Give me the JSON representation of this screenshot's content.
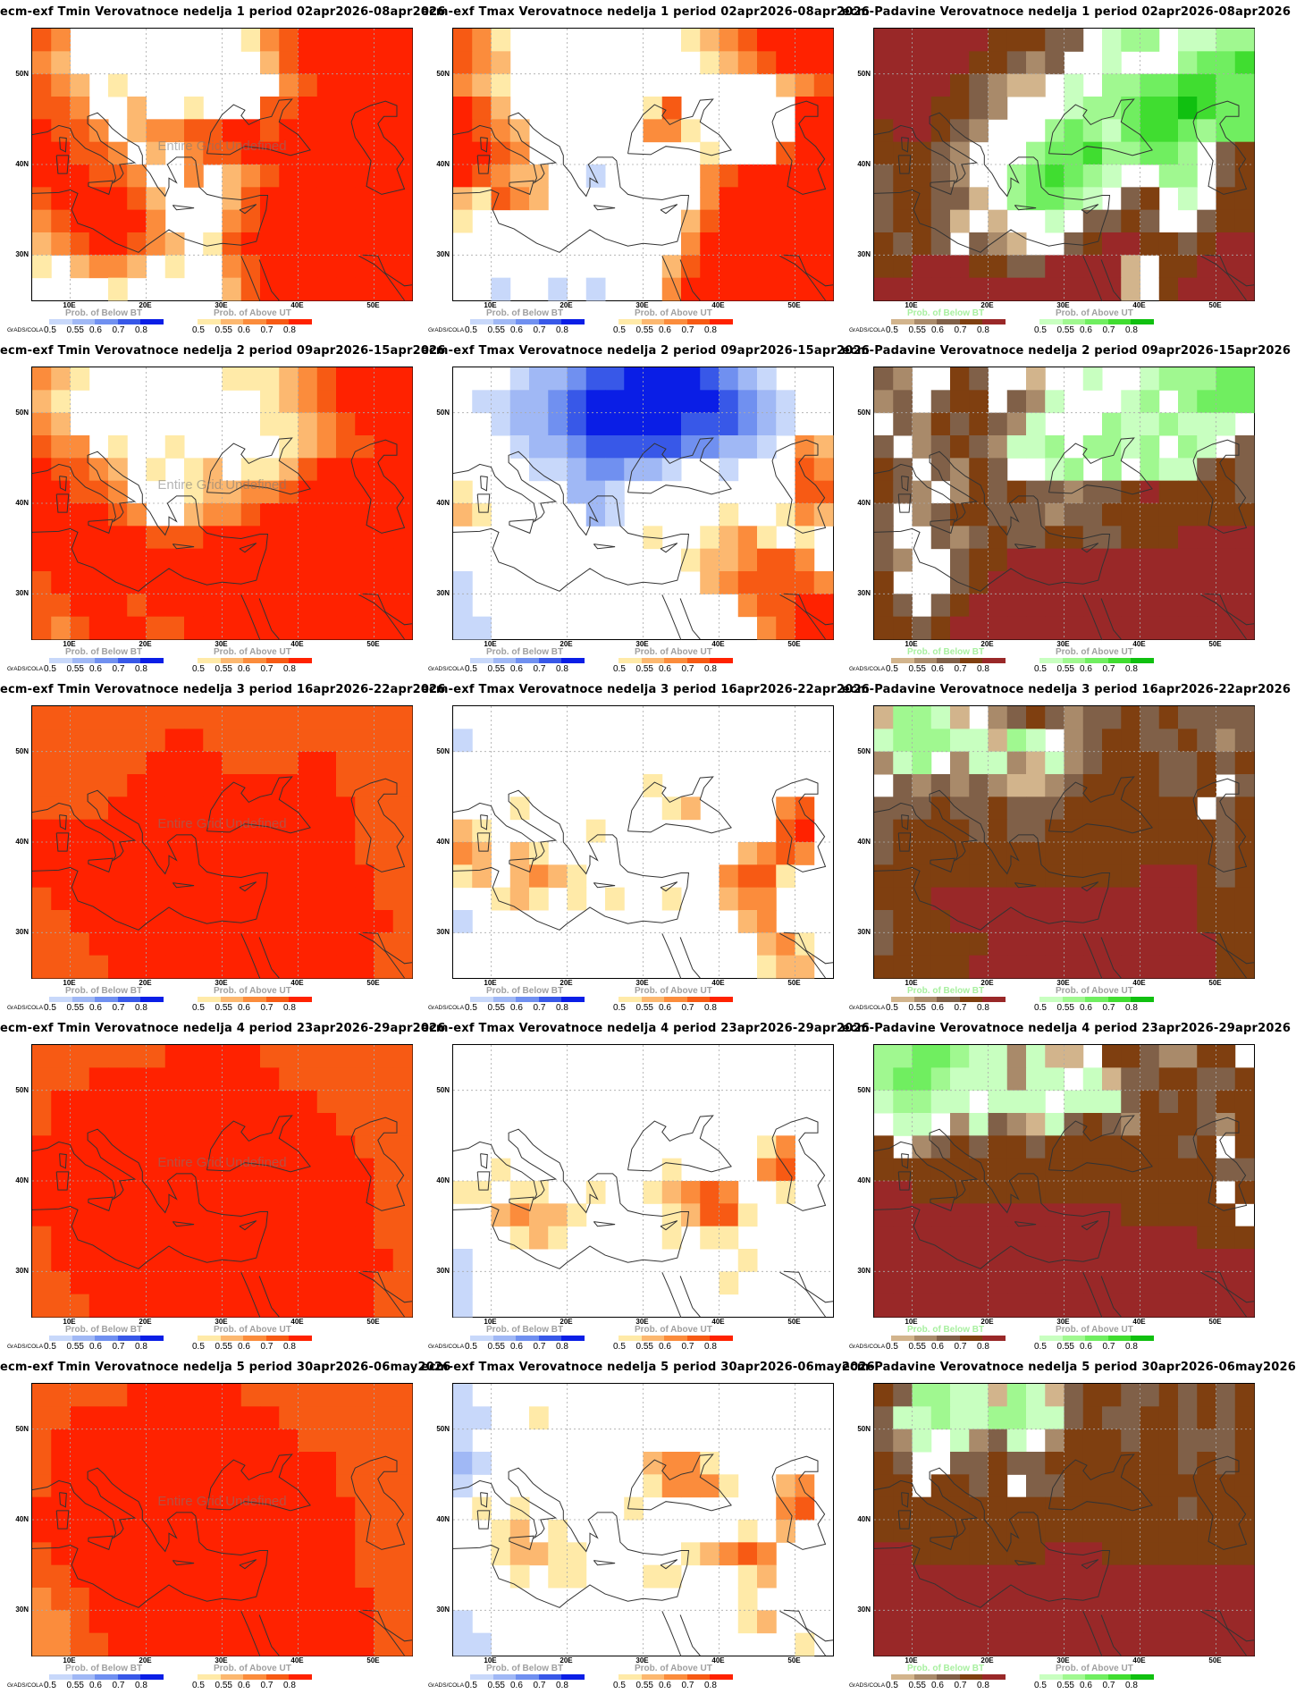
{
  "grads_label": "GrADS/COLA",
  "undefined_text": "Entire Grid Undefined",
  "lat_labels": [
    "50N",
    "40N",
    "30N"
  ],
  "lon_labels": [
    "10E",
    "20E",
    "30E",
    "40E",
    "50E"
  ],
  "legend_ticks": [
    "0.5",
    "0.55",
    "0.6",
    "0.7",
    "0.8"
  ],
  "legends": {
    "temp": {
      "below_label": "Prob. of Below BT",
      "above_label": "Prob. of Above UT",
      "below_label_color": "#a0a0a0",
      "below_colors": [
        "#c8d8fa",
        "#a0b8f5",
        "#7090f0",
        "#3858e8",
        "#0a1ee6"
      ],
      "above_colors": [
        "#ffeaa8",
        "#fcb870",
        "#fb8c3c",
        "#f75a14",
        "#ff2200"
      ]
    },
    "precip": {
      "below_label": "Prob. of Below BT",
      "above_label": "Prob. of Above UT",
      "below_label_color": "#a8f0a0",
      "below_colors": [
        "#d2b48c",
        "#a98a6a",
        "#806048",
        "#7f3f10",
        "#992828"
      ],
      "above_colors": [
        "#c8ffc0",
        "#a0f890",
        "#70ee60",
        "#40dd30",
        "#10c010"
      ]
    }
  },
  "panels": [
    {
      "title": "ecm-exf Tmin Verovatnoce nedelja 1 period 02apr2026-08apr2026",
      "kind": "temp",
      "undefined": true,
      "grid": [
        "DC.........ACDEEEEEE",
        "CB..........BDEEEEEE",
        "DCB.A........CDEEEEE",
        "DDC..B..A...DDEEEEEE",
        "EDDC.BCCDDEEDEEEEEEE",
        "EEDDC.B.CDDEEEEEEEEE",
        "EEEDDC..C.BCDEEEEEEE",
        "DEEEEDB...BDEEEEEEEE",
        "CDEEEEC...CDEEEEEEEE",
        "BCDEEDCB.ADEEEEEEEEE",
        "A.BCCB.A..CDEEEEEEEE",
        "....A.....BDEEEEEEEE"
      ]
    },
    {
      "title": "ecm-exf Tmax Verovatnoce nedelja 1 period 02apr2026-08apr2026",
      "kind": "temp",
      "undefined": false,
      "grid": [
        "DCA.........ABCDEEEE",
        "DCB..........ABCDEEE",
        "CBA..............BCD",
        "EDB.......AD......EE",
        "EDCB......CCA.....EE",
        "EEDC.........A...DEE",
        "EDCBB..a.....CDEEEEE",
        "BADCB........CEEEEEE",
        "A...........BDEEEEEE",
        "............CEEEEEEE",
        "...........BDEEEEEEE",
        "..a..a.a...CEEEEEEEE"
      ]
    },
    {
      "title": "ecm-Padavine Verovatnoce nedelja 1 period 02apr2026-08apr2026",
      "kind": "precip",
      "undefined": false,
      "grid": [
        "eeeeeedddcc.ABB.AABB",
        "eeeeeddcbc..A...BCCD",
        "eeeedcbaa.A.BBCCDDCC",
        "eeeddcb...ABBCDDEDCC",
        "deedcb...BCBACDDCBCC",
        "dddcb...BCCDBBCCB.cd",
        "cddcb..BCDCBA..BB.cd",
        "cddcca.BCCBA.cd.A.dd",
        "cddca.a..A.ccdc..cdd",
        "dcdc.cba..cdeeddcdee",
        "ddeeeddcceeeea.ddeee",
        "eeeeeeeeeeeeea.deeee"
      ]
    },
    {
      "title": "ecm-exf Tmin Verovatnoce nedelja 2 period 09apr2026-15apr2026",
      "kind": "temp",
      "undefined": true,
      "grid": [
        "CBA.......AAABCDEEEE",
        "BA..........ABCDEEEE",
        "CB..........AABCDEEE",
        "DCC.A..A.....ABCDDEE",
        "EDDCB.A.AB.AABDEEEEE",
        "EEDDC...ABBCCDEEEEEE",
        "EEEEDC..BCCDEEEEEEEE",
        "EEEEEEDDDEEEEEEEEEEE",
        "EEEEEEEEEEEEEEEEEEEE",
        "DEEEEEEEEEEEEEEEEEEE",
        "DDEEEDEEEEEEEEEEEEEE",
        "DCDEEEDDEEEEEEEEEEEE"
      ]
    },
    {
      "title": "ecm-exf Tmax Verovatnoce nedelja 2 period 09apr2026-15apr2026",
      "kind": "temp",
      "undefined": false,
      "grid": [
        "...abbcddeeeedcba...",
        ".aabbcdeeeeeeedcba..",
        "..abbcdeeeeedddcba..",
        "...abbcdddddccbba.CB",
        "....aabccbba..a...DC",
        "A.....bba.........DD",
        "BA.....ba.....A..ACB",
        "..........A..ABCA.A.",
        "............ABBCDDC.",
        "a............BCDDDDC",
        "a..............CDDEE",
        "aa..............CDEE"
      ]
    },
    {
      "title": "ecm-Padavine Verovatnoce nedelja 2 period 09apr2026-15apr2026",
      "kind": "precip",
      "undefined": false,
      "grid": [
        "cb..dc..a..A..ABBBCC",
        "bc.cdd.cbA...AB.BCCC",
        ".cbdcdcbA...BAABAAA.",
        "c.bcdcbAAB.BBAB.BA.c",
        "dc.cbdc..AB.B.BAAcdc",
        "dcb.bdcdccbccdeddddc",
        "c.bcddcccbccdddddddd",
        "c..cbcdccddccdddeeee",
        "cb..cddeeeeeeeeeeeee",
        "d...cdeeeeeeeeeeeeee",
        "dc.cdeeeeeeeeeeeeeee",
        "ddcdeeeeeeeeeeeeeeee"
      ]
    },
    {
      "title": "ecm-exf Tmin Verovatnoce nedelja 3 period 16apr2026-22apr2026",
      "kind": "temp",
      "undefined": true,
      "grid": [
        "DDDDDDDDDDDDDDDDDDDD",
        "DDDDDDDEEDDDDDDDDDDD",
        "DDDDDDEEEEDDDDEEDDDD",
        "DDDDDEEEEEEEEEEEDDDD",
        "DDDDEEEEEEEEEEEEEDDD",
        "EEEEEEEEEEEEEEEEEDDD",
        "EEEEEEEEEEEEEEEEEDDD",
        "EEEEEEEEEEEEEEEEEEDD",
        "DEEEEEEEEEEEEEEEEEDD",
        "DDEEEEEEEEEEEEEEEEED",
        "DDDEEEEEEEEEEEEEEEDD",
        "DDDDEEEEEEEEEEEEEEDD"
      ]
    },
    {
      "title": "ecm-exf Tmax Verovatnoce nedelja 3 period 16apr2026-22apr2026",
      "kind": "temp",
      "undefined": false,
      "grid": [
        "....................",
        "a...................",
        "....................",
        "..........A.........",
        "...A.......AB....CD.",
        "BA.....A.........DE.",
        "CB.BA..........BCDC.",
        "AB.BCBA.......CDDA..",
        "..ABA.A.A..A..BCC...",
        "a..............BC...",
        "................BCA.",
        "................ABB."
      ]
    },
    {
      "title": "ecm-Padavine Verovatnoce nedelja 3 period 16apr2026-22apr2026",
      "kind": "precip",
      "undefined": false,
      "grid": [
        "aBBAa.bcdcbccdcdcccc",
        "ABBBAAaBA.bcddccdcbc",
        "bAB.bAAbaAbcdddccdcd",
        ".cbcbcbaabcddddccd.c",
        "cccdccdcccddddddd.cd",
        "cddddcdccdddddddddcd",
        "cdddddddddddddddddcd",
        "ddddddddddddddeeedcd",
        "dddeeeeeeeeeeeeeeddd",
        "cdddeeeeeeeeeeeeeddd",
        "cdddddeeeeeeeeeeeedd",
        "dddddeeeeeeeeeeeeedd"
      ]
    },
    {
      "title": "ecm-exf Tmin Verovatnoce nedelja 4 period 23apr2026-29apr2026",
      "kind": "temp",
      "undefined": true,
      "grid": [
        "DDDDDDDEEEEEDDDDDDDD",
        "DDDEEEEEEEEEEDDDDDDD",
        "DEEEEEEEEEEEEEEDDDDD",
        "DEEEEEEEEEEEEEEEDDDD",
        "EEEEEEEEEEEEEEEEEDDD",
        "EEEEEEEEEEEEEEEEEEDD",
        "EEEEEEEEEEEEEEEEEEDD",
        "EEEEEEEEEEEEEEEEEEDD",
        "DEEEEEEEEEEEEEEEEEDD",
        "DEEEEEEEEEEEEEEEEEED",
        "DDEEEEEEEEEEEEEEEEDD",
        "DDDEEEEEEEEEEEEEEEDD"
      ]
    },
    {
      "title": "ecm-exf Tmax Verovatnoce nedelja 4 period 23apr2026-29apr2026",
      "kind": "temp",
      "undefined": false,
      "grid": [
        "....................",
        "....................",
        "....................",
        "....................",
        "................AC..",
        "..A........A....CD..",
        "AA.AA..A..ABCDC..A..",
        "..BCBBA....ABDDA....",
        "...ABA.....A.AA.....",
        "a..............A....",
        "a.............A.....",
        "a..................."
      ]
    },
    {
      "title": "ecm-Padavine Verovatnoce nedelja 4 period 23apr2026-29apr2026",
      "kind": "precip",
      "undefined": false,
      "grid": [
        "BBCCBAAbAaa.ddcbbdd.",
        "BCCBAAAbAA.Aaccddccd",
        "ABBAA.AAA.AAAcdcdcdd",
        ".AA.bAcbaAcdcbdddcbd",
        "d.bcdcddcdddddddcd.d",
        "ddddddddddddddddddcc",
        "eedddddddddddddddd.d",
        "eeeeeeeeeeeeedddddd.",
        "eeeeeeeeeeeeeeeeeddd",
        "eeeeeeeeeeeeeeeeeeee",
        "eeeeeeeeeeeeeeeeeeee",
        "eeeeeeeeeeeeeeeeeeee"
      ]
    },
    {
      "title": "ecm-exf Tmin Verovatnoce nedelja 5 period 30apr2026-06may2026",
      "kind": "temp",
      "undefined": true,
      "grid": [
        "DDDDDEEEEEEDDDDDDDDD",
        "DDEEEEEEEEEEEDDDDDDD",
        "DEEEEEEEEEEEEEDDDDDD",
        "DEEEEEEEEEEEEEEEDDDD",
        "DEEEEEEEEEEEEEEEDDDD",
        "EEEEEEEEEEEEEEEEEDDD",
        "EEEEEEEEEEEEEEEEEDDD",
        "DEEEEEEEEEEEEEEEEDDD",
        "DDEEEEEEEEEEEEEEEDDD",
        "CDDEEEEEEEEEEEEEEEDD",
        "CCDEEEEEEEEEEEEEEEDD",
        "CCDDEEEEEEEEEEEEEEDD"
      ]
    },
    {
      "title": "ecm-exf Tmax Verovatnoce nedelja 5 period 30apr2026-06may2026",
      "kind": "temp",
      "undefined": false,
      "grid": [
        "a...................",
        "aa..A...............",
        "a...................",
        "ba........BCCA......",
        "a.........ACCCA..BC.",
        ".A.A.....A.......CD.",
        "..AB.A.........A.B..",
        "..ABBAA.....ABCDC...",
        "...A.AA...AA...AB...",
        "...............A....",
        "a..............AB...",
        "aa................A."
      ]
    },
    {
      "title": "ecm-Padavine Verovatnoce nedelja 5 period 30apr2026-06may2026",
      "kind": "precip",
      "undefined": false,
      "grid": [
        "dcBBAAaBAacddccdcdcd",
        "cAABAABBAAcdccddcdcd",
        "cbA.AbcA.bdddcddcccd",
        "dc..ccdccdddddddcdcd",
        "dd.ddcd.ccdddddddddd",
        "ddddddddddddddddcddd",
        "dddddddddddddddddddd",
        "eedddddddeeedddddddd",
        "eeeeeeeeeeeeeeeeeeee",
        "eeeeeeeeeeeeeeeeeeee",
        "eeeeeeeeeeeeeeeeeeee",
        "eeeeeeeeeeeeeeeeeeee"
      ]
    }
  ]
}
